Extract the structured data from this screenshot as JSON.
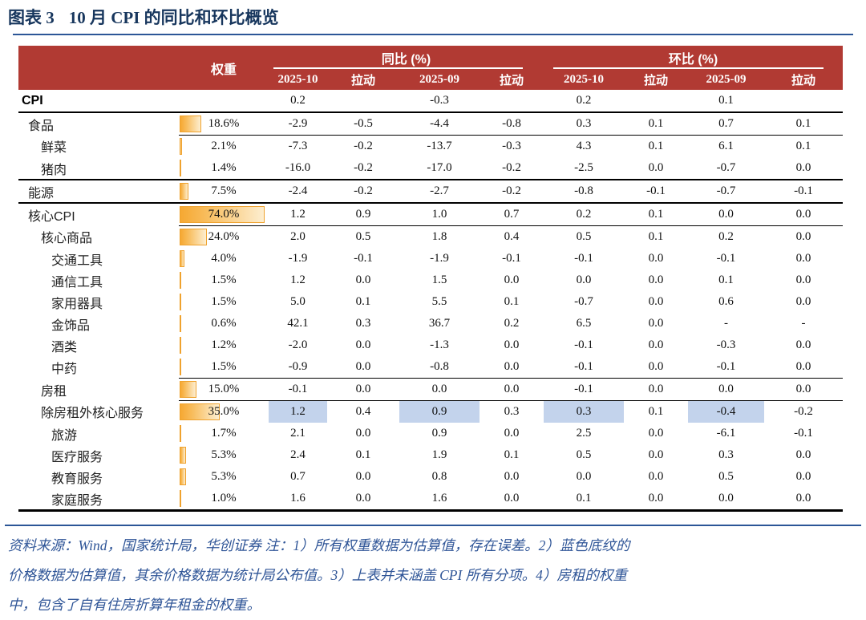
{
  "title": {
    "figure_label": "图表 3",
    "figure_title": "10 月 CPI 的同比和环比概览"
  },
  "colors": {
    "header_bg": "#B13A33",
    "title_navy": "#17365D",
    "rule_blue": "#2C5697",
    "footer_blue": "#2F5597",
    "highlight_blue": "#C3D3EC",
    "bar_orange": "#F6A832"
  },
  "table": {
    "header": {
      "weight_label": "权重",
      "yoy_label": "同比 (%)",
      "mom_label": "环比 (%)",
      "sub_columns": [
        "2025-10",
        "拉动",
        "2025-09",
        "拉动",
        "2025-10",
        "拉动",
        "2025-09",
        "拉动"
      ]
    },
    "weight_scale_max": 74.0,
    "rows": [
      {
        "label": "CPI",
        "level": 0,
        "bold": true,
        "weight": "",
        "weight_value": 0,
        "values": [
          "0.2",
          "",
          "-0.3",
          "",
          "0.2",
          "",
          "0.1",
          ""
        ],
        "divider": "full",
        "highlight": []
      },
      {
        "label": "食品",
        "level": 1,
        "bold": false,
        "weight": "18.6%",
        "weight_value": 18.6,
        "values": [
          "-2.9",
          "-0.5",
          "-4.4",
          "-0.8",
          "0.3",
          "0.1",
          "0.7",
          "0.1"
        ],
        "divider": "partial",
        "highlight": []
      },
      {
        "label": "鲜菜",
        "level": 2,
        "bold": false,
        "weight": "2.1%",
        "weight_value": 2.1,
        "values": [
          "-7.3",
          "-0.2",
          "-13.7",
          "-0.3",
          "4.3",
          "0.1",
          "6.1",
          "0.1"
        ],
        "divider": "none",
        "highlight": []
      },
      {
        "label": "猪肉",
        "level": 2,
        "bold": false,
        "weight": "1.4%",
        "weight_value": 1.4,
        "values": [
          "-16.0",
          "-0.2",
          "-17.0",
          "-0.2",
          "-2.5",
          "0.0",
          "-0.7",
          "0.0"
        ],
        "divider": "full",
        "highlight": []
      },
      {
        "label": "能源",
        "level": 1,
        "bold": false,
        "weight": "7.5%",
        "weight_value": 7.5,
        "values": [
          "-2.4",
          "-0.2",
          "-2.7",
          "-0.2",
          "-0.8",
          "-0.1",
          "-0.7",
          "-0.1"
        ],
        "divider": "full",
        "highlight": []
      },
      {
        "label": "核心CPI",
        "level": 1,
        "bold": false,
        "weight": "74.0%",
        "weight_value": 74.0,
        "values": [
          "1.2",
          "0.9",
          "1.0",
          "0.7",
          "0.2",
          "0.1",
          "0.0",
          "0.0"
        ],
        "divider": "partial",
        "highlight": []
      },
      {
        "label": "核心商品",
        "level": 2,
        "bold": false,
        "weight": "24.0%",
        "weight_value": 24.0,
        "values": [
          "2.0",
          "0.5",
          "1.8",
          "0.4",
          "0.5",
          "0.1",
          "0.2",
          "0.0"
        ],
        "divider": "none",
        "highlight": []
      },
      {
        "label": "交通工具",
        "level": 3,
        "bold": false,
        "weight": "4.0%",
        "weight_value": 4.0,
        "values": [
          "-1.9",
          "-0.1",
          "-1.9",
          "-0.1",
          "-0.1",
          "0.0",
          "-0.1",
          "0.0"
        ],
        "divider": "none",
        "highlight": []
      },
      {
        "label": "通信工具",
        "level": 3,
        "bold": false,
        "weight": "1.5%",
        "weight_value": 1.5,
        "values": [
          "1.2",
          "0.0",
          "1.5",
          "0.0",
          "0.0",
          "0.0",
          "0.1",
          "0.0"
        ],
        "divider": "none",
        "highlight": []
      },
      {
        "label": "家用器具",
        "level": 3,
        "bold": false,
        "weight": "1.5%",
        "weight_value": 1.5,
        "values": [
          "5.0",
          "0.1",
          "5.5",
          "0.1",
          "-0.7",
          "0.0",
          "0.6",
          "0.0"
        ],
        "divider": "none",
        "highlight": []
      },
      {
        "label": "金饰品",
        "level": 3,
        "bold": false,
        "weight": "0.6%",
        "weight_value": 0.6,
        "values": [
          "42.1",
          "0.3",
          "36.7",
          "0.2",
          "6.5",
          "0.0",
          "-",
          "-"
        ],
        "divider": "none",
        "highlight": []
      },
      {
        "label": "酒类",
        "level": 3,
        "bold": false,
        "weight": "1.2%",
        "weight_value": 1.2,
        "values": [
          "-2.0",
          "0.0",
          "-1.3",
          "0.0",
          "-0.1",
          "0.0",
          "-0.3",
          "0.0"
        ],
        "divider": "none",
        "highlight": []
      },
      {
        "label": "中药",
        "level": 3,
        "bold": false,
        "weight": "1.5%",
        "weight_value": 1.5,
        "values": [
          "-0.9",
          "0.0",
          "-0.8",
          "0.0",
          "-0.1",
          "0.0",
          "-0.1",
          "0.0"
        ],
        "divider": "partial",
        "highlight": []
      },
      {
        "label": "房租",
        "level": 2,
        "bold": false,
        "weight": "15.0%",
        "weight_value": 15.0,
        "values": [
          "-0.1",
          "0.0",
          "0.0",
          "0.0",
          "-0.1",
          "0.0",
          "0.0",
          "0.0"
        ],
        "divider": "partial",
        "highlight": []
      },
      {
        "label": "除房租外核心服务",
        "level": 2,
        "bold": false,
        "weight": "35.0%",
        "weight_value": 35.0,
        "values": [
          "1.2",
          "0.4",
          "0.9",
          "0.3",
          "0.3",
          "0.1",
          "-0.4",
          "-0.2"
        ],
        "divider": "none",
        "highlight": [
          0,
          2,
          4,
          6
        ]
      },
      {
        "label": "旅游",
        "level": 3,
        "bold": false,
        "weight": "1.7%",
        "weight_value": 1.7,
        "values": [
          "2.1",
          "0.0",
          "0.9",
          "0.0",
          "2.5",
          "0.0",
          "-6.1",
          "-0.1"
        ],
        "divider": "none",
        "highlight": []
      },
      {
        "label": "医疗服务",
        "level": 3,
        "bold": false,
        "weight": "5.3%",
        "weight_value": 5.3,
        "values": [
          "2.4",
          "0.1",
          "1.9",
          "0.1",
          "0.5",
          "0.0",
          "0.3",
          "0.0"
        ],
        "divider": "none",
        "highlight": []
      },
      {
        "label": "教育服务",
        "level": 3,
        "bold": false,
        "weight": "5.3%",
        "weight_value": 5.3,
        "values": [
          "0.7",
          "0.0",
          "0.8",
          "0.0",
          "0.0",
          "0.0",
          "0.5",
          "0.0"
        ],
        "divider": "none",
        "highlight": []
      },
      {
        "label": "家庭服务",
        "level": 3,
        "bold": false,
        "weight": "1.0%",
        "weight_value": 1.0,
        "values": [
          "1.6",
          "0.0",
          "1.6",
          "0.0",
          "0.1",
          "0.0",
          "0.0",
          "0.0"
        ],
        "divider": "last",
        "highlight": []
      }
    ]
  },
  "footer": {
    "lines": [
      "资料来源：Wind，国家统计局，华创证券 注：1）所有权重数据为估算值，存在误差。2）蓝色底纹的",
      "价格数据为估算值，其余价格数据为统计局公布值。3）上表并未涵盖 CPI 所有分项。4）房租的权重",
      "中，包含了自有住房折算年租金的权重。"
    ]
  }
}
